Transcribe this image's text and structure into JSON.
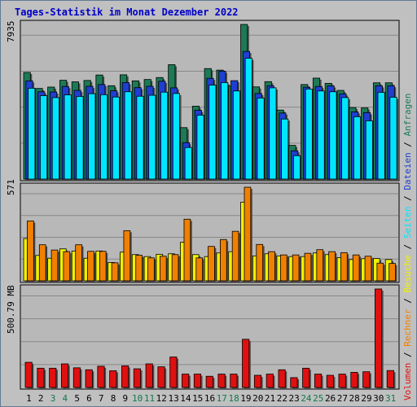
{
  "title": "Tages-Statistik im Monat Dezember 2022",
  "colors": {
    "frame_bg": "#c0c0c0",
    "plot_bg": "#b8b8b8",
    "grid": "#888888",
    "anfragen": "#1c7a55",
    "dateien": "#1e3fd0",
    "seiten": "#00e5ff",
    "besuche": "#f0f000",
    "rechner": "#f08000",
    "volumen": "#e01010",
    "weekend_label": "#0e7a4a",
    "weekday_label": "#000000",
    "title": "#0000c8"
  },
  "chart_data": {
    "type": "bar",
    "categories": [
      "1",
      "2",
      "3",
      "4",
      "5",
      "6",
      "7",
      "8",
      "9",
      "10",
      "11",
      "12",
      "13",
      "14",
      "15",
      "16",
      "17",
      "18",
      "19",
      "20",
      "21",
      "22",
      "23",
      "24",
      "25",
      "26",
      "27",
      "28",
      "29",
      "30",
      "31"
    ],
    "weekend_days": [
      "3",
      "4",
      "10",
      "11",
      "17",
      "18",
      "24",
      "25",
      "31"
    ],
    "panels": [
      {
        "id": "top",
        "max_label": "7935",
        "max": 7935,
        "series": [
          {
            "name": "Anfragen",
            "color_key": "anfragen",
            "values": [
              5470,
              4650,
              4720,
              5070,
              4990,
              5060,
              5340,
              4790,
              5350,
              5040,
              5110,
              5210,
              5870,
              2640,
              3740,
              5670,
              5590,
              4780,
              7935,
              4730,
              5000,
              3540,
              1730,
              4850,
              5180,
              4910,
              4550,
              3670,
              3650,
              4940,
              4940
            ]
          },
          {
            "name": "Dateien",
            "color_key": "dateien",
            "values": [
              5040,
              4480,
              4470,
              4750,
              4550,
              4760,
              4850,
              4530,
              4950,
              4690,
              4760,
              5020,
              4680,
              1870,
              3530,
              5170,
              5540,
              5050,
              6550,
              4390,
              4790,
              3390,
              1450,
              4710,
              4750,
              4780,
              4370,
              3450,
              3410,
              4790,
              4790
            ]
          },
          {
            "name": "Seiten",
            "color_key": "seiten",
            "values": [
              4660,
              4280,
              4180,
              4320,
              4240,
              4380,
              4330,
              4210,
              4480,
              4250,
              4300,
              4460,
              4390,
              1620,
              3280,
              4820,
              4950,
              4520,
              6200,
              4160,
              4680,
              3080,
              1200,
              4620,
              4520,
              4480,
              4180,
              3200,
              2990,
              4450,
              4200
            ]
          }
        ]
      },
      {
        "id": "middle",
        "max_label": "571",
        "max": 571,
        "series": [
          {
            "name": "Besuche",
            "color_key": "besuche",
            "values": [
              258,
              155,
              138,
              195,
              182,
              138,
              182,
              112,
              175,
              160,
              148,
              162,
              165,
              235,
              160,
              148,
              170,
              178,
              480,
              152,
              165,
              152,
              148,
              148,
              170,
              160,
              142,
              130,
              135,
              136,
              130
            ]
          },
          {
            "name": "Rechner",
            "color_key": "rechner",
            "values": [
              365,
              220,
              188,
              178,
              220,
              180,
              180,
              110,
              306,
              156,
              140,
              150,
              160,
              376,
              140,
              210,
              252,
              302,
              571,
              222,
              178,
              158,
              158,
              168,
              190,
              178,
              172,
              158,
              150,
              108,
              106
            ]
          }
        ]
      },
      {
        "id": "bottom",
        "max_label": "500.79 MB",
        "max": 500.79,
        "series": [
          {
            "name": "Volumen",
            "color_key": "volumen",
            "values": [
              128,
              98,
              98,
              120,
              100,
              90,
              108,
              85,
              110,
              95,
              120,
              105,
              155,
              68,
              68,
              57,
              68,
              68,
              245,
              62,
              68,
              90,
              50,
              98,
              68,
              62,
              68,
              77,
              80,
              500.79,
              86
            ]
          }
        ]
      }
    ],
    "right_legend": [
      {
        "text": "Volumen",
        "color_key": "volumen"
      },
      {
        "text": "Rechner",
        "color_key": "rechner"
      },
      {
        "text": "Besuche",
        "color_key": "besuche"
      },
      {
        "text": "Seiten",
        "color_key": "seiten"
      },
      {
        "text": "Dateien",
        "color_key": "dateien"
      },
      {
        "text": "Anfragen",
        "color_key": "anfragen"
      }
    ]
  }
}
